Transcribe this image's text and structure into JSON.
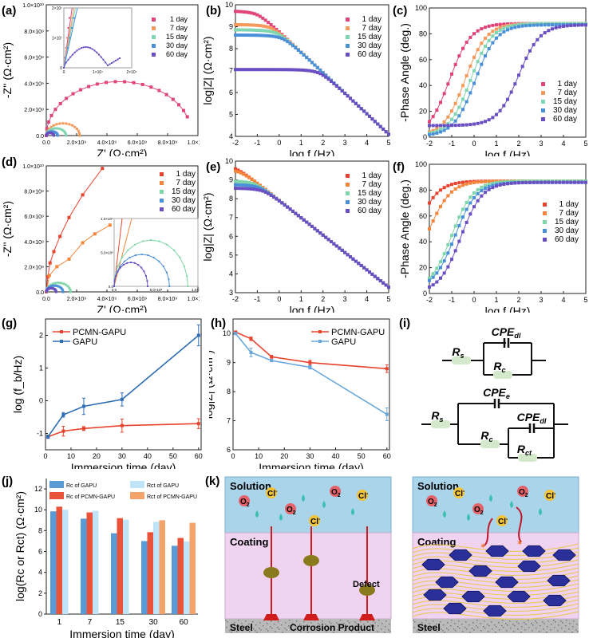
{
  "figure": {
    "panel_labels": [
      "(a)",
      "(b)",
      "(c)",
      "(d)",
      "(e)",
      "(f)",
      "(g)",
      "(h)",
      "(i)",
      "(j)",
      "(k)"
    ],
    "day_colors_gapu": [
      "#e0457a",
      "#f59a5c",
      "#7fd6b0",
      "#4a90d9",
      "#6a4fc2"
    ],
    "day_colors_pcmn": [
      "#e8432e",
      "#f5853a",
      "#7fd6a8",
      "#4a90d9",
      "#6a4fc2"
    ]
  },
  "chart_data": [
    {
      "id": "a",
      "type": "scatter",
      "title": "",
      "xlabel": "Z' (Ω·cm²)",
      "ylabel": "-Z'' (Ω·cm²)",
      "xlim": [
        0,
        10000000000.0
      ],
      "ylim": [
        0,
        10000000000.0
      ],
      "xticks": [
        "0.0",
        "2.0×10⁹",
        "4.0×10⁹",
        "6.0×10⁹",
        "8.0×10⁹",
        "1.0×10¹⁰"
      ],
      "yticks": [
        "0.0",
        "2.0×10⁹",
        "4.0×10⁹",
        "6.0×10⁹",
        "8.0×10⁹",
        "1.0×10¹⁰"
      ],
      "legend": [
        "1 day",
        "7 day",
        "15 day",
        "30 day",
        "60 day"
      ],
      "legend_position": "top-right",
      "series": [
        {
          "name": "1 day",
          "shape": "semicircle",
          "diameter": 9600000000.0,
          "x_end": 9300000000.0
        },
        {
          "name": "7 day",
          "shape": "semicircle",
          "diameter": 2200000000.0
        },
        {
          "name": "15 day",
          "shape": "semicircle",
          "diameter": 1300000000.0
        },
        {
          "name": "30 day",
          "shape": "semicircle",
          "diameter": 750000000.0
        },
        {
          "name": "60 day",
          "shape": "semicircle",
          "diameter": 500000000.0
        }
      ],
      "inset": {
        "xticks": [
          "0",
          "1×10⁷",
          "2×10⁷"
        ],
        "yticks": [
          "0",
          "1×10⁷",
          "2×10⁷"
        ],
        "note": "60 day small arc up to ~1.3×10⁷ then diffusion tail"
      }
    },
    {
      "id": "b",
      "type": "scatter",
      "title": "",
      "xlabel": "log f (Hz)",
      "ylabel": "log|Z| (Ω·cm²)",
      "xlim": [
        -2,
        5
      ],
      "ylim": [
        4,
        10.3
      ],
      "xticks": [
        "-2",
        "-1",
        "0",
        "1",
        "2",
        "3",
        "4",
        "5"
      ],
      "yticks": [
        "4",
        "5",
        "6",
        "7",
        "8",
        "9",
        "10"
      ],
      "legend": [
        "1 day",
        "7 day",
        "15 day",
        "30 day",
        "60 day"
      ],
      "legend_position": "top-right",
      "series": [
        {
          "name": "1 day",
          "low_freq_plateau": 10.0
        },
        {
          "name": "7 day",
          "low_freq_plateau": 9.35
        },
        {
          "name": "15 day",
          "low_freq_plateau": 9.1
        },
        {
          "name": "30 day",
          "low_freq_plateau": 8.85
        },
        {
          "name": "60 day",
          "low_freq_plateau": 7.2
        }
      ],
      "high_freq_value": 4.1
    },
    {
      "id": "c",
      "type": "scatter",
      "title": "",
      "xlabel": "log f (Hz)",
      "ylabel": "-Phase Angle (deg.)",
      "xlim": [
        -2,
        5
      ],
      "ylim": [
        0,
        100
      ],
      "xticks": [
        "-2",
        "-1",
        "0",
        "1",
        "2",
        "3",
        "4",
        "5"
      ],
      "yticks": [
        "0",
        "20",
        "40",
        "60",
        "80",
        "100"
      ],
      "legend": [
        "1 day",
        "7 day",
        "15 day",
        "30 day",
        "60 day"
      ],
      "legend_position": "bottom-right",
      "series": [
        {
          "name": "1 day",
          "start": 12,
          "midpoint_logf": -1.1,
          "plateau": 88
        },
        {
          "name": "7 day",
          "start": 4,
          "midpoint_logf": -0.4,
          "plateau": 88
        },
        {
          "name": "15 day",
          "start": 3,
          "midpoint_logf": -0.15,
          "plateau": 88
        },
        {
          "name": "30 day",
          "start": 2,
          "midpoint_logf": 0.05,
          "plateau": 87
        },
        {
          "name": "60 day",
          "start": 9,
          "min": 5,
          "midpoint_logf": 2.0,
          "plateau": 87
        }
      ]
    },
    {
      "id": "d",
      "type": "scatter",
      "title": "",
      "xlabel": "Z' (Ω·cm²)",
      "ylabel": "-Z'' (Ω·cm²)",
      "xlim": [
        0,
        10000000000.0
      ],
      "ylim": [
        0,
        10000000000.0
      ],
      "xticks": [
        "0.0",
        "2.0×10⁹",
        "4.0×10⁹",
        "6.0×10⁹",
        "8.0×10⁹",
        "1.0×10¹⁰"
      ],
      "yticks": [
        "0.0",
        "2.0×10⁹",
        "4.0×10⁹",
        "6.0×10⁹",
        "8.0×10⁹",
        "1.0×10¹⁰"
      ],
      "legend": [
        "1  day",
        "7  day",
        "15 day",
        "30 day",
        "60 day"
      ],
      "legend_position": "top-right",
      "series": [
        {
          "name": "1 day",
          "x": [
            0,
            100000000.0,
            250000000.0,
            500000000.0,
            900000000.0,
            1500000000.0,
            2400000000.0,
            3700000000.0
          ],
          "y": [
            0,
            1200000000.0,
            2300000000.0,
            3200000000.0,
            4400000000.0,
            5900000000.0,
            7700000000.0,
            9800000000.0
          ]
        },
        {
          "name": "7 day",
          "x": [
            0,
            200000000.0,
            700000000.0,
            1500000000.0,
            2400000000.0,
            3200000000.0,
            4200000000.0
          ],
          "y": [
            0,
            1300000000.0,
            2000000000.0,
            2600000000.0,
            3900000000.0,
            4600000000.0,
            5300000000.0
          ]
        },
        {
          "name": "15 day",
          "shape": "semicircle",
          "diameter": 1600000000.0
        },
        {
          "name": "30 day",
          "shape": "semicircle",
          "diameter": 1100000000.0
        },
        {
          "name": "60 day",
          "shape": "semicircle",
          "diameter": 650000000.0
        }
      ],
      "inset": {
        "xticks": [
          "0.0",
          "5.0×10⁸",
          "1.0×10⁹"
        ],
        "yticks": [
          "0.0",
          "5.0×10⁸",
          "1.0×10⁹"
        ]
      }
    },
    {
      "id": "e",
      "type": "scatter",
      "title": "",
      "xlabel": "log f (Hz)",
      "ylabel": "log|Z| (Ω·cm²)",
      "xlim": [
        -2,
        5
      ],
      "ylim": [
        3,
        10.3
      ],
      "xticks": [
        "-2",
        "-1",
        "0",
        "1",
        "2",
        "3",
        "4",
        "5"
      ],
      "yticks": [
        "3",
        "4",
        "5",
        "6",
        "7",
        "8",
        "9",
        "10"
      ],
      "legend": [
        "1   day",
        "7   day",
        "15 day",
        "30 day",
        "60 day"
      ],
      "legend_position": "top-right",
      "series": [
        {
          "name": "1 day",
          "low_freq_plateau": 10.05
        },
        {
          "name": "7 day",
          "low_freq_plateau": 9.85
        },
        {
          "name": "15 day",
          "low_freq_plateau": 9.2
        },
        {
          "name": "30 day",
          "low_freq_plateau": 9.0
        },
        {
          "name": "60 day",
          "low_freq_plateau": 8.8
        }
      ],
      "high_freq_value": 3.3
    },
    {
      "id": "f",
      "type": "scatter",
      "title": "",
      "xlabel": "log f (Hz)",
      "ylabel": "-Phase Angle (deg.)",
      "xlim": [
        -2,
        5
      ],
      "ylim": [
        0,
        100
      ],
      "xticks": [
        "-2",
        "-1",
        "0",
        "1",
        "2",
        "3",
        "4",
        "5"
      ],
      "yticks": [
        "0",
        "20",
        "40",
        "60",
        "80",
        "100"
      ],
      "legend": [
        "1   day",
        "7   day",
        "15 day",
        "30 day",
        "60 day"
      ],
      "legend_position": "center-right",
      "series": [
        {
          "name": "1 day",
          "start": 70,
          "midpoint_logf": -2.6,
          "plateau": 87
        },
        {
          "name": "7 day",
          "start": 50,
          "midpoint_logf": -1.95,
          "plateau": 87
        },
        {
          "name": "15 day",
          "start": 12,
          "midpoint_logf": -1.0,
          "plateau": 87
        },
        {
          "name": "30 day",
          "start": 10,
          "midpoint_logf": -0.85,
          "plateau": 86
        },
        {
          "name": "60 day",
          "start": 5,
          "midpoint_logf": -0.6,
          "plateau": 86
        }
      ]
    },
    {
      "id": "g",
      "type": "line",
      "title": "",
      "xlabel": "Immersion time (day)",
      "ylabel": "log (f_b/Hz)",
      "xlim": [
        0,
        61
      ],
      "ylim": [
        -1.5,
        2.5
      ],
      "xticks": [
        "0",
        "10",
        "20",
        "30",
        "40",
        "50",
        "60"
      ],
      "yticks": [
        "-1",
        "0",
        "1",
        "2"
      ],
      "legend_position": "top-left",
      "x": [
        1,
        7,
        15,
        30,
        60
      ],
      "series": [
        {
          "name": "PCMN-GAPU",
          "color": "#e8432e",
          "values": [
            -1.1,
            -0.93,
            -0.85,
            -0.76,
            -0.7
          ],
          "errors": [
            0.05,
            0.15,
            0.06,
            0.2,
            0.15
          ]
        },
        {
          "name": "GAPU",
          "color": "#2e6db4",
          "values": [
            -1.1,
            -0.43,
            -0.17,
            0.04,
            2.0
          ],
          "errors": [
            0.05,
            0.07,
            0.25,
            0.2,
            0.32
          ]
        }
      ]
    },
    {
      "id": "h",
      "type": "line",
      "title": "",
      "xlabel": "Immersion time (day)",
      "ylabel": "log|Z| (Ω·cm²)",
      "xlim": [
        0,
        61
      ],
      "ylim": [
        6,
        10.5
      ],
      "xticks": [
        "0",
        "10",
        "20",
        "30",
        "40",
        "50",
        "60"
      ],
      "yticks": [
        "6",
        "7",
        "8",
        "9",
        "10"
      ],
      "legend_position": "top-right",
      "x": [
        1,
        7,
        15,
        30,
        60
      ],
      "series": [
        {
          "name": "PCMN-GAPU",
          "color": "#e8432e",
          "values": [
            10.05,
            9.82,
            9.2,
            9.0,
            8.79
          ],
          "errors": [
            0.04,
            0.06,
            0.05,
            0.08,
            0.13
          ]
        },
        {
          "name": "GAPU",
          "color": "#6aa8dc",
          "values": [
            10.0,
            9.35,
            9.07,
            8.84,
            7.22
          ],
          "errors": [
            0.04,
            0.15,
            0.04,
            0.06,
            0.22
          ]
        }
      ]
    },
    {
      "id": "j",
      "type": "bar",
      "title": "",
      "xlabel": "Immersion time (day)",
      "ylabel": "log(Rc or Rct) (Ω·cm²)",
      "ylim": [
        0,
        13
      ],
      "categories": [
        "1",
        "7",
        "15",
        "30",
        "60"
      ],
      "yticks": [
        "0",
        "2",
        "4",
        "6",
        "8",
        "10",
        "12"
      ],
      "legend_position": "top",
      "series": [
        {
          "name": "Rc of GAPU",
          "color": "#5b9bd5",
          "values": [
            9.85,
            9.15,
            7.75,
            7.0,
            6.55
          ]
        },
        {
          "name": "Rc of PCMN-GAPU",
          "color": "#e8533a",
          "values": [
            10.3,
            9.75,
            9.2,
            7.85,
            7.3
          ]
        },
        {
          "name": "Rct of GAPU",
          "color": "#bfe3f7",
          "values": [
            10.0,
            9.9,
            9.05,
            8.85,
            6.95
          ]
        },
        {
          "name": "Rct of PCMN-GAPU",
          "color": "#f4a46a",
          "values": [
            null,
            null,
            null,
            9.0,
            8.75
          ]
        }
      ]
    }
  ],
  "circuit_i": {
    "top": {
      "elements": [
        "R_s",
        "CPE_dl",
        "R_c"
      ]
    },
    "bottom": {
      "elements": [
        "R_s",
        "CPE_e",
        "R_c",
        "CPE_dl",
        "R_ct"
      ]
    }
  },
  "schematic_k": {
    "left": {
      "layers": [
        "Solution",
        "Coating",
        "Steel"
      ],
      "species": [
        "O2",
        "Cl-",
        "O2",
        "Cl-",
        "O2",
        "Cl-"
      ],
      "annotations": [
        "Defect",
        "Corrosion Product"
      ]
    },
    "right": {
      "layers": [
        "Solution",
        "Coating",
        "Steel"
      ],
      "species": [
        "O2",
        "Cl-",
        "O2",
        "Cl-",
        "O2",
        "Cl-"
      ]
    }
  }
}
